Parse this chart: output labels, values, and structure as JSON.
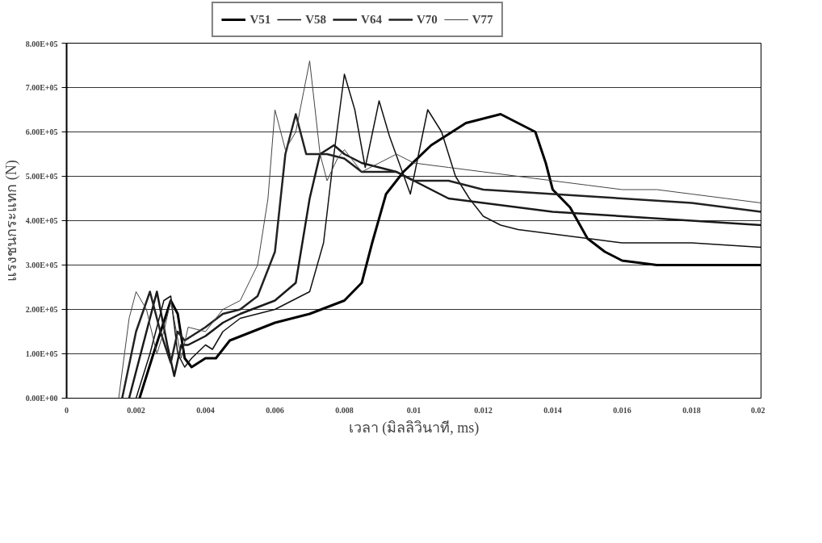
{
  "chart_data": {
    "type": "line",
    "xlabel": "เวลา (มิลลิวินาที, ms)",
    "ylabel": "แรงชนกระแทก (N)",
    "xlim": [
      0,
      0.02
    ],
    "xticks": [
      0,
      0.002,
      0.004,
      0.006,
      0.008,
      0.01,
      0.012,
      0.014,
      0.016,
      0.018,
      0.02
    ],
    "ylim": [
      0,
      800000
    ],
    "yticks": [
      {
        "value": 0,
        "label": "0.00E+00"
      },
      {
        "value": 100000,
        "label": "1.00E+05"
      },
      {
        "value": 200000,
        "label": "2.00E+05"
      },
      {
        "value": 300000,
        "label": "3.00E+05"
      },
      {
        "value": 400000,
        "label": "4.00E+05"
      },
      {
        "value": 500000,
        "label": "5.00E+05"
      },
      {
        "value": 600000,
        "label": "6.00E+05"
      },
      {
        "value": 700000,
        "label": "7.00E+05"
      },
      {
        "value": 800000,
        "label": "8.00E+05"
      }
    ],
    "grid": "y",
    "legend": "top",
    "marker": "none",
    "line_style": "solid",
    "series": [
      {
        "name": "V51",
        "color": "#000000",
        "x": [
          0.0021,
          0.0025,
          0.003,
          0.0032,
          0.0034,
          0.0036,
          0.004,
          0.0043,
          0.0047,
          0.006,
          0.007,
          0.008,
          0.0085,
          0.0088,
          0.0092,
          0.0097,
          0.0105,
          0.0115,
          0.0125,
          0.013,
          0.0135,
          0.0138,
          0.014,
          0.0145,
          0.015,
          0.0155,
          0.016,
          0.017,
          0.018,
          0.019,
          0.02
        ],
        "values": [
          0,
          100000,
          220000,
          190000,
          90000,
          70000,
          90000,
          90000,
          130000,
          170000,
          190000,
          220000,
          260000,
          350000,
          460000,
          510000,
          570000,
          620000,
          640000,
          620000,
          600000,
          530000,
          470000,
          430000,
          360000,
          330000,
          310000,
          300000,
          300000,
          300000,
          300000
        ]
      },
      {
        "name": "V58",
        "color": "#111111",
        "x": [
          0.002,
          0.0024,
          0.0028,
          0.003,
          0.0032,
          0.0034,
          0.0036,
          0.004,
          0.0042,
          0.0045,
          0.005,
          0.006,
          0.007,
          0.0074,
          0.0077,
          0.008,
          0.0083,
          0.0086,
          0.009,
          0.0093,
          0.0099,
          0.0104,
          0.0108,
          0.0112,
          0.0116,
          0.012,
          0.0125,
          0.013,
          0.014,
          0.015,
          0.016,
          0.018,
          0.02
        ],
        "values": [
          0,
          100000,
          220000,
          230000,
          100000,
          70000,
          90000,
          120000,
          110000,
          150000,
          180000,
          200000,
          240000,
          350000,
          550000,
          730000,
          650000,
          520000,
          670000,
          590000,
          460000,
          650000,
          600000,
          500000,
          450000,
          410000,
          390000,
          380000,
          370000,
          360000,
          350000,
          350000,
          340000
        ]
      },
      {
        "name": "V64",
        "color": "#1a1a1a",
        "x": [
          0.0018,
          0.0022,
          0.0026,
          0.0029,
          0.0031,
          0.0033,
          0.0035,
          0.004,
          0.0045,
          0.005,
          0.006,
          0.0066,
          0.007,
          0.0073,
          0.0077,
          0.008,
          0.0085,
          0.009,
          0.0095,
          0.01,
          0.011,
          0.012,
          0.014,
          0.016,
          0.018,
          0.02
        ],
        "values": [
          0,
          120000,
          240000,
          120000,
          50000,
          120000,
          120000,
          140000,
          170000,
          190000,
          220000,
          260000,
          450000,
          550000,
          570000,
          550000,
          530000,
          520000,
          510000,
          490000,
          450000,
          440000,
          420000,
          410000,
          400000,
          390000
        ]
      },
      {
        "name": "V70",
        "color": "#222222",
        "x": [
          0.0016,
          0.002,
          0.0024,
          0.0027,
          0.003,
          0.0032,
          0.0034,
          0.0036,
          0.004,
          0.0045,
          0.005,
          0.0055,
          0.006,
          0.0063,
          0.0066,
          0.0069,
          0.0075,
          0.008,
          0.0085,
          0.009,
          0.0095,
          0.01,
          0.011,
          0.012,
          0.014,
          0.016,
          0.018,
          0.02
        ],
        "values": [
          0,
          150000,
          240000,
          150000,
          80000,
          150000,
          130000,
          140000,
          160000,
          190000,
          200000,
          230000,
          330000,
          550000,
          640000,
          550000,
          550000,
          540000,
          510000,
          510000,
          510000,
          490000,
          490000,
          470000,
          460000,
          450000,
          440000,
          420000
        ]
      },
      {
        "name": "V77",
        "color": "#444444",
        "x": [
          0.0015,
          0.0018,
          0.002,
          0.0023,
          0.0026,
          0.0028,
          0.003,
          0.0033,
          0.0035,
          0.004,
          0.0045,
          0.005,
          0.0055,
          0.0058,
          0.006,
          0.0063,
          0.0066,
          0.007,
          0.0073,
          0.0075,
          0.0078,
          0.008,
          0.0085,
          0.009,
          0.0095,
          0.01,
          0.011,
          0.012,
          0.013,
          0.014,
          0.015,
          0.016,
          0.017,
          0.018,
          0.019,
          0.02
        ],
        "values": [
          0,
          180000,
          240000,
          200000,
          100000,
          150000,
          220000,
          90000,
          160000,
          150000,
          200000,
          220000,
          300000,
          450000,
          650000,
          560000,
          600000,
          760000,
          550000,
          490000,
          540000,
          560000,
          510000,
          530000,
          550000,
          530000,
          520000,
          510000,
          500000,
          490000,
          480000,
          470000,
          470000,
          460000,
          450000,
          440000
        ]
      }
    ]
  }
}
